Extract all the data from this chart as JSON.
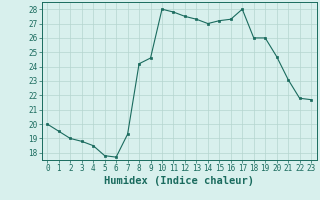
{
  "x": [
    0,
    1,
    2,
    3,
    4,
    5,
    6,
    7,
    8,
    9,
    10,
    11,
    12,
    13,
    14,
    15,
    16,
    17,
    18,
    19,
    20,
    21,
    22,
    23
  ],
  "y": [
    20.0,
    19.5,
    19.0,
    18.8,
    18.5,
    17.8,
    17.7,
    19.3,
    24.2,
    24.6,
    28.0,
    27.8,
    27.5,
    27.3,
    27.0,
    27.2,
    27.3,
    28.0,
    26.0,
    26.0,
    24.7,
    23.1,
    21.8,
    21.7
  ],
  "line_color": "#1a6b5e",
  "marker_color": "#1a6b5e",
  "bg_color": "#d8f0ed",
  "grid_color": "#b5d5cf",
  "xlabel": "Humidex (Indice chaleur)",
  "ylim": [
    17.5,
    28.5
  ],
  "xlim": [
    -0.5,
    23.5
  ],
  "yticks": [
    18,
    19,
    20,
    21,
    22,
    23,
    24,
    25,
    26,
    27,
    28
  ],
  "xticks": [
    0,
    1,
    2,
    3,
    4,
    5,
    6,
    7,
    8,
    9,
    10,
    11,
    12,
    13,
    14,
    15,
    16,
    17,
    18,
    19,
    20,
    21,
    22,
    23
  ],
  "tick_fontsize": 5.5,
  "xlabel_fontsize": 7.5
}
